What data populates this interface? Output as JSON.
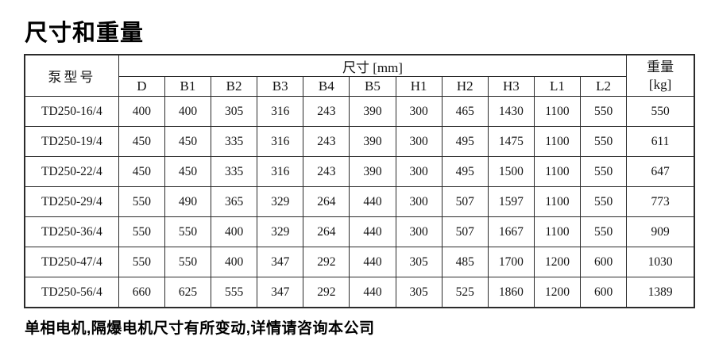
{
  "title": "尺寸和重量",
  "table": {
    "model_header": "泵型号",
    "dim_header": "尺寸 [mm]",
    "weight_header_line1": "重量",
    "weight_header_line2": "[kg]",
    "columns": [
      "D",
      "B1",
      "B2",
      "B3",
      "B4",
      "B5",
      "H1",
      "H2",
      "H3",
      "L1",
      "L2"
    ],
    "rows": [
      {
        "model": "TD250-16/4",
        "values": [
          400,
          400,
          305,
          316,
          243,
          390,
          300,
          465,
          1430,
          1100,
          550
        ],
        "weight": 550
      },
      {
        "model": "TD250-19/4",
        "values": [
          450,
          450,
          335,
          316,
          243,
          390,
          300,
          495,
          1475,
          1100,
          550
        ],
        "weight": 611
      },
      {
        "model": "TD250-22/4",
        "values": [
          450,
          450,
          335,
          316,
          243,
          390,
          300,
          495,
          1500,
          1100,
          550
        ],
        "weight": 647
      },
      {
        "model": "TD250-29/4",
        "values": [
          550,
          490,
          365,
          329,
          264,
          440,
          300,
          507,
          1597,
          1100,
          550
        ],
        "weight": 773
      },
      {
        "model": "TD250-36/4",
        "values": [
          550,
          550,
          400,
          329,
          264,
          440,
          300,
          507,
          1667,
          1100,
          550
        ],
        "weight": 909
      },
      {
        "model": "TD250-47/4",
        "values": [
          550,
          550,
          400,
          347,
          292,
          440,
          305,
          485,
          1700,
          1200,
          600
        ],
        "weight": 1030
      },
      {
        "model": "TD250-56/4",
        "values": [
          660,
          625,
          555,
          347,
          292,
          440,
          305,
          525,
          1860,
          1200,
          600
        ],
        "weight": 1389
      }
    ]
  },
  "footnote": "单相电机,隔爆电机尺寸有所变动,详情请咨询本公司",
  "colors": {
    "text": "#141414",
    "border": "#2b2b2b",
    "background": "#ffffff"
  }
}
